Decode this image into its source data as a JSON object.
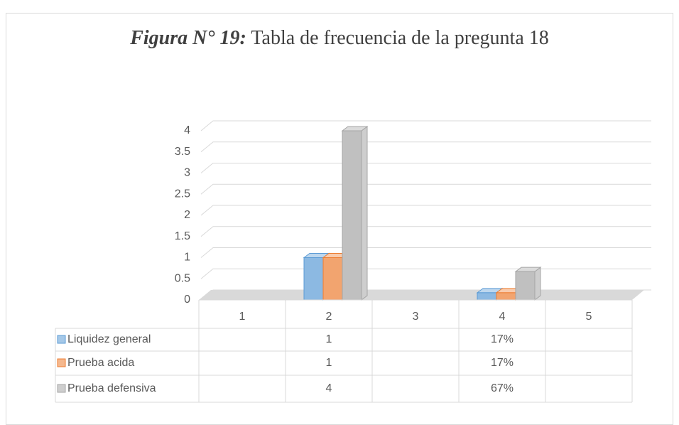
{
  "chart_data": {
    "type": "bar3d",
    "title": {
      "label": "Figura N° 19:",
      "text": "Tabla de frecuencia de la pregunta 18"
    },
    "categories": [
      "1",
      "2",
      "3",
      "4",
      "5"
    ],
    "series": [
      {
        "name": "Liquidez general",
        "color": "#5b9bd5",
        "values": [
          null,
          1,
          null,
          0.17,
          null
        ],
        "value_labels": [
          null,
          "1",
          null,
          "17%",
          null
        ]
      },
      {
        "name": "Prueba acida",
        "color": "#ed7d31",
        "values": [
          null,
          1,
          null,
          0.17,
          null
        ],
        "value_labels": [
          null,
          "1",
          null,
          "17%",
          null
        ]
      },
      {
        "name": "Prueba defensiva",
        "color": "#a5a5a5",
        "values": [
          null,
          4,
          null,
          0.67,
          null
        ],
        "value_labels": [
          null,
          "4",
          null,
          "67%",
          null
        ]
      }
    ],
    "ylim": [
      0,
      4
    ],
    "yticks": [
      0,
      0.5,
      1,
      1.5,
      2,
      2.5,
      3,
      3.5,
      4
    ],
    "grid": true,
    "legend": "table"
  }
}
